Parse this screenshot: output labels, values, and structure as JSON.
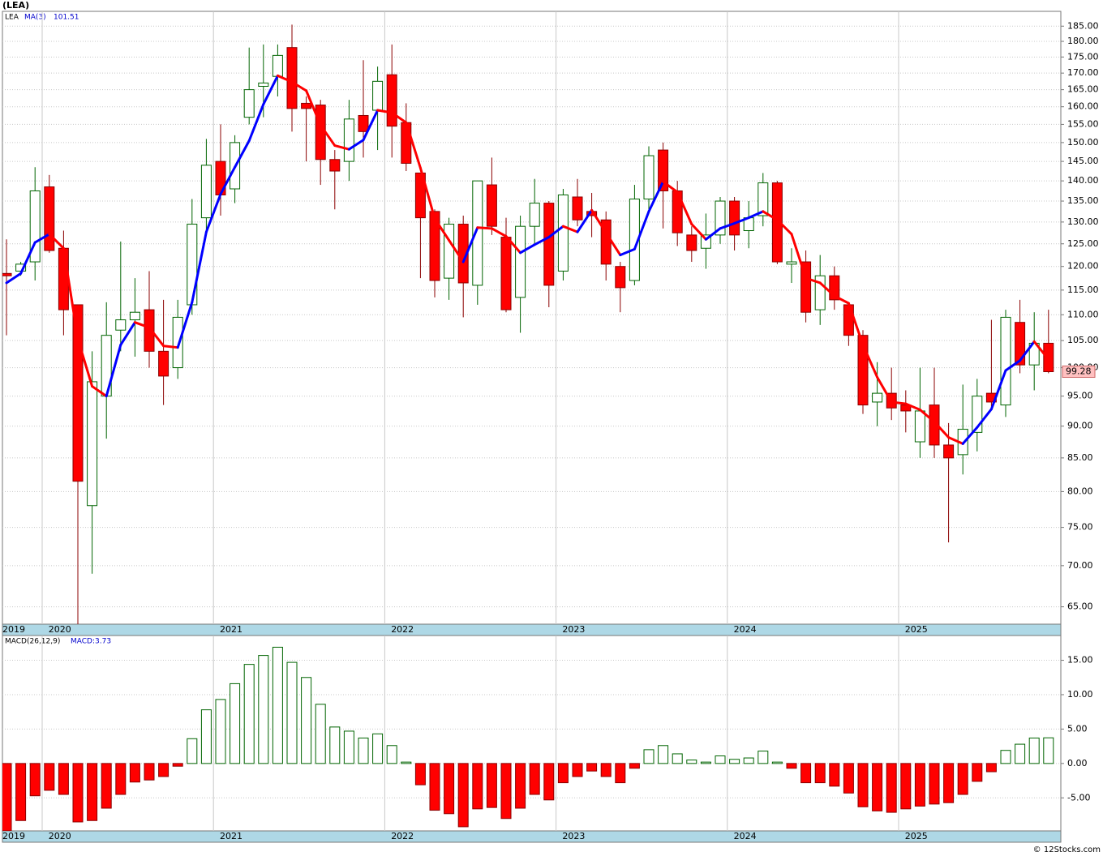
{
  "chart_data": [
    {
      "type": "candlestick",
      "title": "(LEA)",
      "symbol": "LEA",
      "log": true,
      "grid": true,
      "up_color": "#ffffff",
      "up_edge": "#006400",
      "down_color": "#ff0000",
      "down_edge": "#8b0000",
      "categories": [
        "2019",
        null,
        null,
        "2020",
        null,
        null,
        null,
        null,
        null,
        null,
        null,
        null,
        null,
        null,
        null,
        "2021",
        null,
        null,
        null,
        null,
        null,
        null,
        null,
        null,
        null,
        null,
        null,
        "2022",
        null,
        null,
        null,
        null,
        null,
        null,
        null,
        null,
        null,
        null,
        null,
        "2023",
        null,
        null,
        null,
        null,
        null,
        null,
        null,
        null,
        null,
        null,
        null,
        "2024",
        null,
        null,
        null,
        null,
        null,
        null,
        null,
        null,
        null,
        null,
        null,
        "2025",
        null,
        null,
        null,
        null,
        null,
        null,
        null,
        null,
        null,
        null
      ],
      "open": [
        118.5,
        119,
        121,
        138.5,
        124,
        112,
        78,
        95,
        107,
        109,
        111,
        103,
        100,
        112,
        131,
        145,
        138,
        157,
        166,
        169,
        178,
        161,
        160.5,
        145.5,
        145,
        157.5,
        159,
        169.5,
        155.5,
        142,
        132.5,
        117.5,
        129.5,
        116,
        139,
        126.5,
        113.5,
        129,
        134.5,
        119,
        136,
        132.5,
        130.5,
        120,
        117,
        135.5,
        148,
        137.5,
        127,
        124,
        127,
        135,
        128,
        131.5,
        139.5,
        120.5,
        121,
        111,
        118,
        112,
        106,
        94,
        95.5,
        93.5,
        87.5,
        93.5,
        87,
        85.5,
        89,
        95.5,
        93.5,
        108.5,
        100.5,
        104.5
      ],
      "high": [
        126,
        121,
        143.5,
        141.5,
        128,
        112,
        103,
        112.5,
        125.5,
        117.5,
        119,
        113,
        113,
        135.5,
        151,
        155,
        152,
        178,
        179,
        179,
        185.5,
        163,
        162,
        148,
        162,
        174,
        172,
        179,
        161,
        142,
        133,
        131,
        131.5,
        140,
        146,
        131,
        131.5,
        140.5,
        135,
        138,
        140.5,
        137,
        132.5,
        121,
        139,
        149,
        150,
        140,
        129,
        132,
        136,
        136,
        135,
        142,
        140,
        124,
        123.5,
        122.5,
        120,
        112.5,
        107,
        101,
        100,
        96,
        100,
        100,
        90.5,
        97,
        98,
        109,
        111,
        113,
        110.5,
        111
      ],
      "low": [
        106,
        118,
        117,
        123,
        106,
        63,
        69,
        88,
        103,
        102,
        100,
        93.5,
        98,
        110,
        128,
        131.5,
        134.5,
        155,
        157,
        163,
        153,
        145,
        139,
        133,
        140,
        146,
        148,
        146,
        142.5,
        117.5,
        113.5,
        113,
        109.5,
        112,
        127,
        110.5,
        106.5,
        125,
        111.5,
        117,
        129,
        126.5,
        117,
        110.5,
        116,
        133,
        128.5,
        124.5,
        121,
        119.5,
        125,
        123.5,
        124,
        129,
        120.5,
        116.5,
        108.5,
        108,
        111,
        104,
        92,
        90,
        91,
        89,
        85,
        85,
        73,
        82.5,
        86,
        93,
        91.5,
        99,
        96,
        99
      ],
      "close": [
        118,
        120.5,
        137.5,
        123.5,
        111,
        81.5,
        97.5,
        106,
        109,
        110.5,
        103,
        98.5,
        109.5,
        129.5,
        144,
        136.5,
        150,
        165,
        167,
        175.5,
        159.5,
        159.5,
        145.5,
        142.5,
        156.5,
        153,
        167.5,
        154.5,
        144.5,
        131,
        117,
        129.5,
        116.5,
        140,
        129,
        111,
        129,
        134.5,
        116,
        136.5,
        130.5,
        131.5,
        120.5,
        115.5,
        135.5,
        146.5,
        137.5,
        127.5,
        123.5,
        127,
        135,
        127,
        131,
        139.5,
        121,
        121,
        110.5,
        118,
        113,
        106,
        93.5,
        95.5,
        93,
        92.5,
        92.5,
        87,
        85,
        89.5,
        95,
        94,
        109.5,
        100.5,
        104.5,
        99.28
      ],
      "series": [
        {
          "name": "MA(3)",
          "rise_color": "#0000ff",
          "fall_color": "#ff0000",
          "values": [
            116.5,
            118.5,
            125.3,
            127.2,
            124,
            105.3,
            96.7,
            95,
            104.2,
            108.5,
            107.5,
            104,
            103.7,
            112.5,
            127.7,
            136.7,
            143.5,
            150.5,
            160.7,
            169.2,
            167.3,
            164.7,
            154.8,
            149.2,
            148.2,
            150.7,
            159,
            158.3,
            155.5,
            143.3,
            130.8,
            125.8,
            121,
            128.7,
            128.5,
            126.7,
            123,
            124.8,
            126.5,
            129,
            127.7,
            132.8,
            127.5,
            122.5,
            123.8,
            132.5,
            139.8,
            137.2,
            129.5,
            126,
            128.5,
            129.7,
            131,
            132.5,
            130.5,
            127.2,
            117.5,
            116.5,
            113.8,
            112.3,
            104.2,
            98.3,
            94,
            93.7,
            92.7,
            90.7,
            88.2,
            87.2,
            89.8,
            92.8,
            99.5,
            101.3,
            104.8,
            101.51
          ]
        }
      ],
      "ylim": [
        63,
        190
      ],
      "yticks": [
        {
          "value": 65,
          "label": "65.00"
        },
        {
          "value": 70,
          "label": "70.00"
        },
        {
          "value": 75,
          "label": "75.00"
        },
        {
          "value": 80,
          "label": "80.00"
        },
        {
          "value": 85,
          "label": "85.00"
        },
        {
          "value": 90,
          "label": "90.00"
        },
        {
          "value": 95,
          "label": "95.00"
        },
        {
          "value": 100,
          "label": "100.00"
        },
        {
          "value": 105,
          "label": "105.00"
        },
        {
          "value": 110,
          "label": "110.00"
        },
        {
          "value": 115,
          "label": "115.00"
        },
        {
          "value": 120,
          "label": "120.00"
        },
        {
          "value": 125,
          "label": "125.00"
        },
        {
          "value": 130,
          "label": "130.00"
        },
        {
          "value": 135,
          "label": "135.00"
        },
        {
          "value": 140,
          "label": "140.00"
        },
        {
          "value": 145,
          "label": "145.00"
        },
        {
          "value": 150,
          "label": "150.00"
        },
        {
          "value": 155,
          "label": "155.00"
        },
        {
          "value": 160,
          "label": "160.00"
        },
        {
          "value": 165,
          "label": "165.00"
        },
        {
          "value": 170,
          "label": "170.00"
        },
        {
          "value": 175,
          "label": "175.00"
        },
        {
          "value": 180,
          "label": "180.00"
        },
        {
          "value": 185,
          "label": "185.00"
        }
      ]
    },
    {
      "type": "bar",
      "title": "MACD(26,12,9)",
      "value_prefix": "MACD:",
      "grid": true,
      "pos_color": "#ffffff",
      "pos_edge": "#006400",
      "neg_color": "#ff0000",
      "neg_edge": "#8b0000",
      "values": [
        -9.8,
        -8.3,
        -4.7,
        -3.9,
        -4.5,
        -8.5,
        -8.3,
        -6.5,
        -4.5,
        -2.7,
        -2.4,
        -1.9,
        -0.4,
        3.6,
        7.8,
        9.3,
        11.6,
        14.4,
        15.7,
        16.9,
        14.7,
        12.5,
        8.6,
        5.3,
        4.7,
        3.7,
        4.3,
        2.6,
        0.2,
        -3.1,
        -6.8,
        -7.3,
        -9.2,
        -6.6,
        -6.4,
        -8.0,
        -6.5,
        -4.5,
        -5.3,
        -2.8,
        -1.9,
        -1.1,
        -1.9,
        -2.8,
        -0.7,
        2.0,
        2.6,
        1.4,
        0.5,
        0.2,
        1.1,
        0.6,
        0.8,
        1.8,
        0.2,
        -0.7,
        -2.8,
        -2.8,
        -3.3,
        -4.3,
        -6.3,
        -6.9,
        -7.1,
        -6.6,
        -6.2,
        -5.9,
        -5.7,
        -4.5,
        -2.6,
        -1.2,
        1.9,
        2.8,
        3.7,
        3.73
      ],
      "ylim": [
        -9.8,
        18.6
      ],
      "yticks": [
        {
          "value": -5,
          "label": "-5.00"
        },
        {
          "value": 0,
          "label": "0.00"
        },
        {
          "value": 5,
          "label": "5.00"
        },
        {
          "value": 10,
          "label": "10.00"
        },
        {
          "value": 15,
          "label": "15.00"
        }
      ]
    }
  ],
  "footer": "© 12Stocks.com"
}
